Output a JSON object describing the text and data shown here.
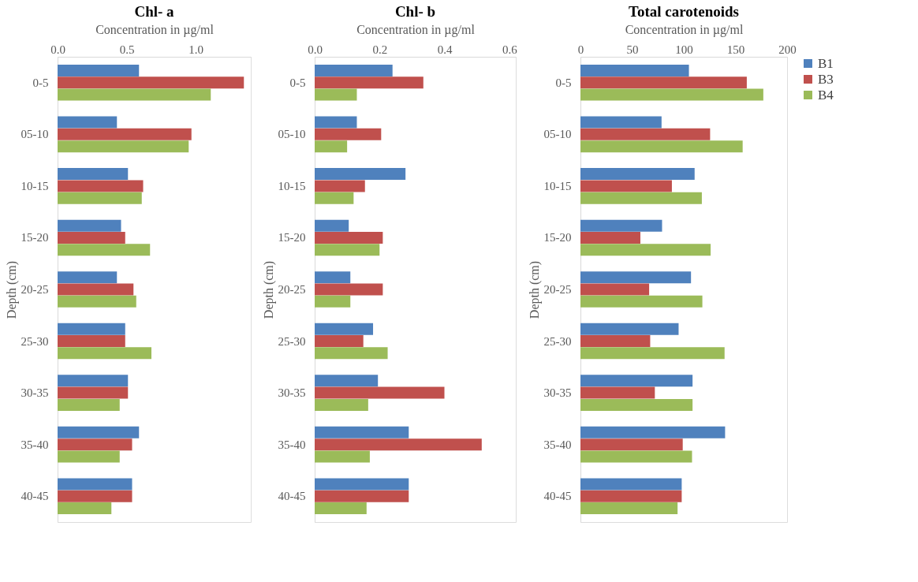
{
  "chart_data": [
    {
      "type": "bar",
      "orientation": "horizontal",
      "title": "Chl- a",
      "xlabel": "Concentration in µg/ml",
      "ylabel": "Depth (cm)",
      "categories": [
        "0-5",
        "05-10",
        "10-15",
        "15-20",
        "20-25",
        "25-30",
        "30-35",
        "35-40",
        "40-45"
      ],
      "xlim": [
        0,
        1.4
      ],
      "xticks": [
        {
          "value": 0,
          "label": "0.0"
        },
        {
          "value": 0.5,
          "label": "0.5"
        },
        {
          "value": 1,
          "label": "1.0"
        }
      ],
      "grid": false,
      "legend": false,
      "series": [
        {
          "color": "#4f81bd",
          "values": [
            0.59,
            0.43,
            0.51,
            0.46,
            0.43,
            0.49,
            0.51,
            0.59,
            0.54
          ]
        },
        {
          "color": "#c0504d",
          "values": [
            1.35,
            0.97,
            0.62,
            0.49,
            0.55,
            0.49,
            0.51,
            0.54,
            0.54
          ]
        },
        {
          "color": "#9bbb59",
          "values": [
            1.11,
            0.95,
            0.61,
            0.67,
            0.57,
            0.68,
            0.45,
            0.45,
            0.39
          ]
        }
      ]
    },
    {
      "type": "bar",
      "orientation": "horizontal",
      "title": "Chl- b",
      "xlabel": "Concentration in µg/ml",
      "ylabel": "Depth (cm)",
      "categories": [
        "0-5",
        "05-10",
        "10-15",
        "15-20",
        "20-25",
        "25-30",
        "30-35",
        "35-40",
        "40-45"
      ],
      "xlim": [
        0,
        0.62
      ],
      "xticks": [
        {
          "value": 0,
          "label": "0.0"
        },
        0.2,
        0.4,
        0.6
      ],
      "grid": false,
      "legend": false,
      "series": [
        {
          "color": "#4f81bd",
          "values": [
            0.24,
            0.13,
            0.28,
            0.105,
            0.11,
            0.18,
            0.195,
            0.29,
            0.29
          ]
        },
        {
          "color": "#c0504d",
          "values": [
            0.335,
            0.205,
            0.155,
            0.21,
            0.21,
            0.15,
            0.4,
            0.515,
            0.29
          ]
        },
        {
          "color": "#9bbb59",
          "values": [
            0.13,
            0.1,
            0.12,
            0.2,
            0.11,
            0.225,
            0.165,
            0.17,
            0.16
          ]
        }
      ]
    },
    {
      "type": "bar",
      "orientation": "horizontal",
      "title": "Total carotenoids",
      "xlabel": "Concentration in µg/ml",
      "ylabel": "Depth (cm)",
      "categories": [
        "0-5",
        "05-10",
        "10-15",
        "15-20",
        "20-25",
        "25-30",
        "30-35",
        "35-40",
        "40-45"
      ],
      "xlim": [
        0,
        200
      ],
      "xticks": [
        0,
        50,
        100,
        150,
        200
      ],
      "grid": false,
      "legend": "right",
      "series": [
        {
          "name": "B1",
          "color": "#4f81bd",
          "values": [
            105,
            78.5,
            110.5,
            79,
            107,
            95,
            108.5,
            140,
            98
          ]
        },
        {
          "name": "B3",
          "color": "#c0504d",
          "values": [
            161,
            125.5,
            88.5,
            58,
            66.5,
            67.5,
            72,
            99,
            98
          ]
        },
        {
          "name": "B4",
          "color": "#9bbb59",
          "values": [
            177,
            157,
            117.5,
            126,
            118,
            139.5,
            108.5,
            108,
            94
          ]
        }
      ]
    }
  ]
}
